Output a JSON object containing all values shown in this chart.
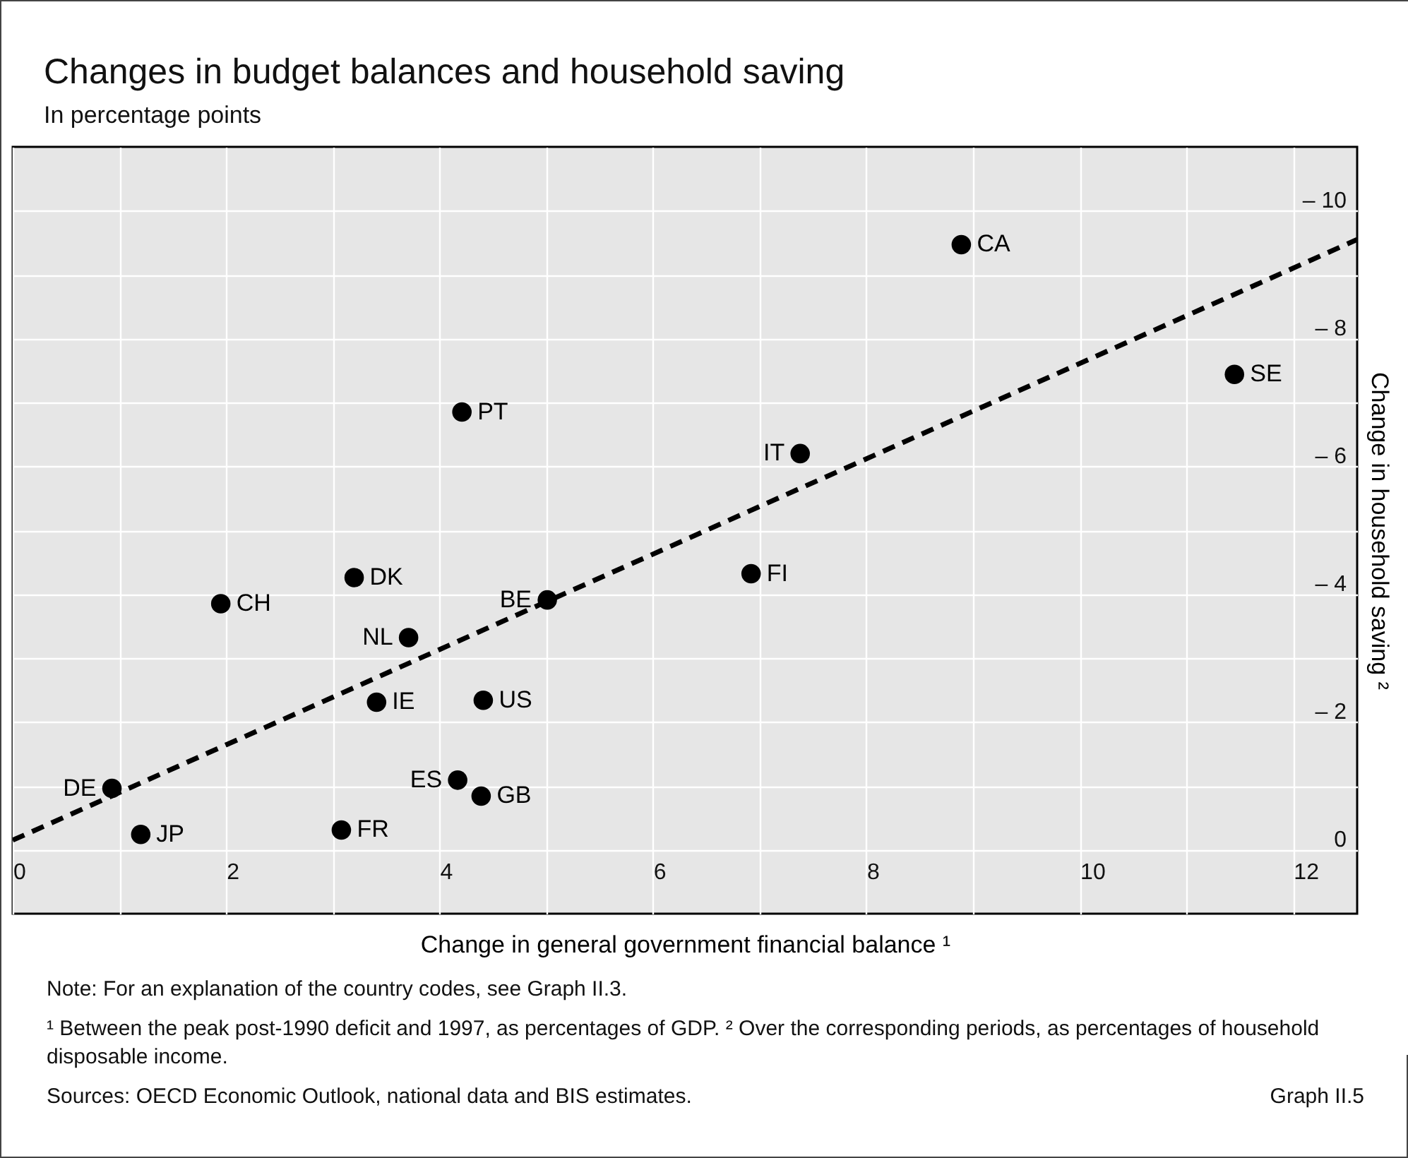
{
  "chart_data": {
    "type": "scatter",
    "title": "Changes in budget balances and household saving",
    "subtitle": "In percentage points",
    "xlabel": "Change in general government financial balance ¹",
    "ylabel": "Change in household saving ²",
    "xlim": [
      0,
      12.6
    ],
    "ylim": [
      1,
      -11
    ],
    "xticks": [
      0,
      {
        "value": 1,
        "label": null
      },
      2,
      {
        "value": 3,
        "label": null
      },
      4,
      {
        "value": 5,
        "label": null
      },
      6,
      {
        "value": 7,
        "label": null
      },
      8,
      {
        "value": 9,
        "label": null
      },
      10,
      {
        "value": 11,
        "label": null
      },
      12
    ],
    "yticks": [
      {
        "value": -10,
        "label": "– 10"
      },
      {
        "value": -9,
        "label": null
      },
      {
        "value": -8,
        "label": "– 8"
      },
      {
        "value": -7,
        "label": null
      },
      {
        "value": -6,
        "label": "– 6"
      },
      {
        "value": -5,
        "label": null
      },
      {
        "value": -4,
        "label": "– 4"
      },
      {
        "value": -3,
        "label": null
      },
      {
        "value": -2,
        "label": "– 2"
      },
      {
        "value": -1,
        "label": null
      },
      0
    ],
    "grid": true,
    "legend": false,
    "series": [
      {
        "name": "CA",
        "color": "#000000",
        "marker": "circle",
        "x": [
          8.89
        ],
        "values": [
          -9.47
        ]
      },
      {
        "name": "SE",
        "color": "#000000",
        "marker": "circle",
        "x": [
          11.45
        ],
        "values": [
          -7.44
        ]
      },
      {
        "name": "PT",
        "color": "#000000",
        "marker": "circle",
        "x": [
          4.21
        ],
        "values": [
          -6.85
        ]
      },
      {
        "name": "IT",
        "color": "#000000",
        "marker": "circle",
        "x": [
          7.38
        ],
        "values": [
          -6.2
        ]
      },
      {
        "name": "FI",
        "color": "#000000",
        "marker": "circle",
        "x": [
          6.92
        ],
        "values": [
          -4.32
        ]
      },
      {
        "name": "DK",
        "color": "#000000",
        "marker": "circle",
        "x": [
          3.2
        ],
        "values": [
          -4.26
        ]
      },
      {
        "name": "BE",
        "color": "#000000",
        "marker": "circle",
        "x": [
          5.01
        ],
        "values": [
          -3.91
        ]
      },
      {
        "name": "CH",
        "color": "#000000",
        "marker": "circle",
        "x": [
          1.95
        ],
        "values": [
          -3.85
        ]
      },
      {
        "name": "NL",
        "color": "#000000",
        "marker": "circle",
        "x": [
          3.71
        ],
        "values": [
          -3.32
        ]
      },
      {
        "name": "IE",
        "color": "#000000",
        "marker": "circle",
        "x": [
          3.41
        ],
        "values": [
          -2.31
        ]
      },
      {
        "name": "US",
        "color": "#000000",
        "marker": "circle",
        "x": [
          4.41
        ],
        "values": [
          -2.34
        ]
      },
      {
        "name": "DE",
        "color": "#000000",
        "marker": "circle",
        "x": [
          0.93
        ],
        "values": [
          -0.96
        ]
      },
      {
        "name": "ES",
        "color": "#000000",
        "marker": "circle",
        "x": [
          4.17
        ],
        "values": [
          -1.09
        ]
      },
      {
        "name": "GB",
        "color": "#000000",
        "marker": "circle",
        "x": [
          4.39
        ],
        "values": [
          -0.84
        ]
      },
      {
        "name": "JP",
        "color": "#000000",
        "marker": "circle",
        "x": [
          1.2
        ],
        "values": [
          -0.24
        ]
      },
      {
        "name": "FR",
        "color": "#000000",
        "marker": "circle",
        "x": [
          3.08
        ],
        "values": [
          -0.31
        ]
      },
      {
        "type": "line",
        "color": "#000000",
        "line_style": "dashed",
        "marker": "none",
        "x": [
          0,
          12.6
        ],
        "values": [
          -0.15,
          -9.55
        ]
      }
    ],
    "annotations": [
      "Note:  For an explanation of the country codes, see Graph II.3.",
      "¹ Between the peak post-1990 deficit and 1997, as percentages of GDP.   ² Over the corresponding periods, as percentages of household disposable income.",
      "Sources: OECD Economic Outlook, national data and BIS estimates.",
      "Graph II.5"
    ]
  }
}
